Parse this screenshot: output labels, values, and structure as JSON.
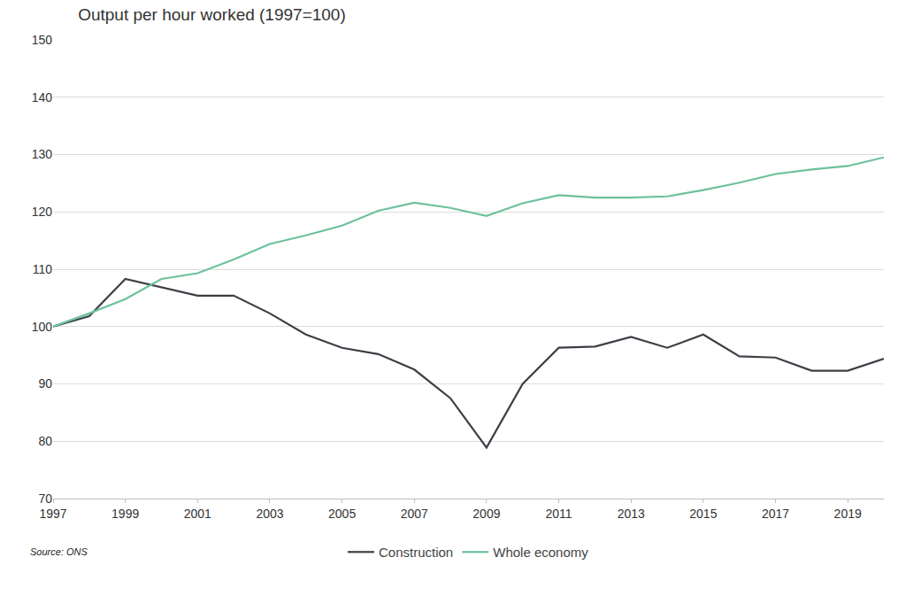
{
  "chart_data": {
    "type": "line",
    "title": "Output per hour worked (1997=100)",
    "x": [
      1997,
      1998,
      1999,
      2000,
      2001,
      2002,
      2003,
      2004,
      2005,
      2006,
      2007,
      2008,
      2009,
      2010,
      2011,
      2012,
      2013,
      2014,
      2015,
      2016,
      2017,
      2018,
      2019,
      2020
    ],
    "series": [
      {
        "name": "Construction",
        "color": "#3b4046",
        "values": [
          100,
          101.8,
          108.3,
          106.8,
          105.4,
          105.4,
          102.3,
          98.6,
          96.3,
          95.2,
          92.5,
          87.5,
          78.9,
          90.0,
          96.3,
          96.5,
          98.2,
          96.3,
          98.6,
          94.8,
          94.6,
          92.3,
          92.3,
          94.4
        ]
      },
      {
        "name": "Whole economy",
        "color": "#6cc19b",
        "values": [
          100,
          102.3,
          104.8,
          108.3,
          109.3,
          111.7,
          114.4,
          115.9,
          117.6,
          120.2,
          121.6,
          120.7,
          119.3,
          121.5,
          122.9,
          122.5,
          122.5,
          122.7,
          123.8,
          125.1,
          126.6,
          127.4,
          128.0,
          129.5
        ]
      }
    ],
    "xlim": [
      1997,
      2020
    ],
    "xticks": [
      1997,
      1999,
      2001,
      2003,
      2005,
      2007,
      2009,
      2011,
      2013,
      2015,
      2017,
      2019
    ],
    "ylim": [
      70,
      150
    ],
    "yticks": [
      70,
      80,
      90,
      100,
      110,
      120,
      130,
      140,
      150
    ],
    "grid": true,
    "legend": "bottom",
    "annotations": [
      "Source: ONS"
    ]
  }
}
